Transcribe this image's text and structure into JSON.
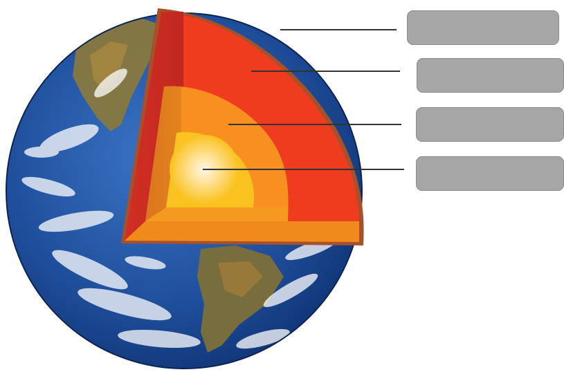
{
  "diagram": {
    "labels": [
      {
        "id": "crust",
        "text": ""
      },
      {
        "id": "mantle",
        "text": ""
      },
      {
        "id": "outer-core",
        "text": ""
      },
      {
        "id": "inner-core",
        "text": ""
      }
    ]
  },
  "colors": {
    "ocean": "#1f4f9c",
    "ocean_dark": "#0d2f6e",
    "land": "#8a7a3c",
    "cloud": "#ffffff",
    "crust": "#a5522c",
    "mantle": "#f03c1e",
    "mantle_shadow": "#c92a22",
    "outer_core": "#f7901e",
    "outer_core_shadow": "#d9731c",
    "inner_core": "#fac21e",
    "center_glow": "#fff8e6",
    "label_box": "#a6a6a6",
    "leader_line": "#333333"
  }
}
